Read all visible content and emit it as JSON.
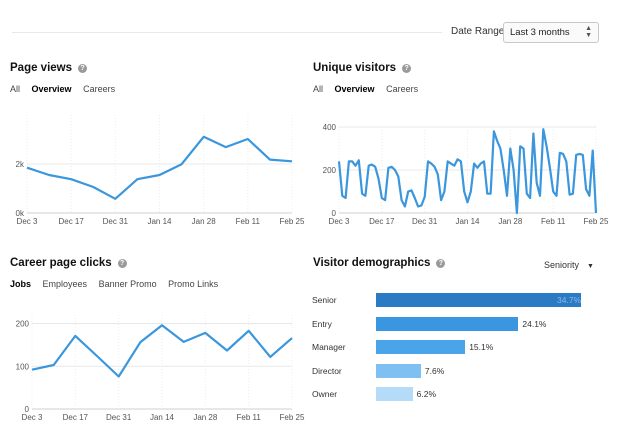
{
  "date_range": {
    "label": "Date Range:",
    "value": "Last 3 months"
  },
  "page_views": {
    "title": "Page views",
    "tabs": [
      "All",
      "Overview",
      "Careers"
    ],
    "active_tab": "Overview",
    "chart_data": {
      "type": "line",
      "x": [
        "Dec 3",
        "Dec 10",
        "Dec 17",
        "Dec 24",
        "Dec 31",
        "Jan 7",
        "Jan 14",
        "Jan 21",
        "Jan 28",
        "Feb 4",
        "Feb 11",
        "Feb 18",
        "Feb 25"
      ],
      "values": [
        1850,
        1550,
        1380,
        1060,
        580,
        1380,
        1550,
        1990,
        3110,
        2690,
        3020,
        2180,
        2110
      ],
      "x_ticks": [
        "Dec 3",
        "Dec 17",
        "Dec 31",
        "Jan 14",
        "Jan 28",
        "Feb 11",
        "Feb 25"
      ],
      "y_ticks": [
        "0k",
        "2k"
      ],
      "ylim": [
        0,
        4000
      ],
      "color": "#3a96dd",
      "grid": true
    }
  },
  "unique_visitors": {
    "title": "Unique visitors",
    "tabs": [
      "All",
      "Overview",
      "Careers"
    ],
    "active_tab": "Overview",
    "chart_data": {
      "type": "line",
      "values": [
        240,
        80,
        70,
        240,
        240,
        220,
        245,
        90,
        80,
        220,
        225,
        215,
        160,
        70,
        60,
        210,
        215,
        200,
        170,
        60,
        30,
        100,
        105,
        70,
        30,
        35,
        75,
        240,
        230,
        215,
        180,
        60,
        100,
        240,
        230,
        220,
        250,
        240,
        100,
        50,
        100,
        230,
        210,
        230,
        240,
        90,
        90,
        380,
        335,
        300,
        200,
        80,
        300,
        200,
        0,
        310,
        300,
        90,
        70,
        370,
        140,
        80,
        390,
        310,
        210,
        100,
        80,
        280,
        275,
        240,
        85,
        90,
        270,
        275,
        270,
        110,
        80,
        290,
        0
      ],
      "x_ticks": [
        "Dec 3",
        "Dec 17",
        "Dec 31",
        "Jan 14",
        "Jan 28",
        "Feb 11",
        "Feb 25"
      ],
      "y_ticks": [
        "0",
        "200",
        "400"
      ],
      "ylim": [
        0,
        400
      ],
      "color": "#3a96dd",
      "grid": true
    }
  },
  "career_clicks": {
    "title": "Career page clicks",
    "tabs": [
      "Jobs",
      "Employees",
      "Banner Promo",
      "Promo Links"
    ],
    "active_tab": "Jobs",
    "chart_data": {
      "type": "line",
      "x": [
        "Dec 3",
        "Dec 10",
        "Dec 17",
        "Dec 24",
        "Dec 31",
        "Jan 7",
        "Jan 14",
        "Jan 21",
        "Jan 28",
        "Feb 4",
        "Feb 11",
        "Feb 18",
        "Feb 25"
      ],
      "values": [
        92,
        103,
        171,
        124,
        76,
        156,
        196,
        157,
        178,
        137,
        183,
        122,
        166
      ],
      "x_ticks": [
        "Dec 3",
        "Dec 17",
        "Dec 31",
        "Jan 14",
        "Jan 28",
        "Feb 11",
        "Feb 25"
      ],
      "y_ticks": [
        "0",
        "100",
        "200"
      ],
      "ylim": [
        0,
        220
      ],
      "color": "#3a96dd",
      "grid": true
    }
  },
  "demographics": {
    "title": "Visitor demographics",
    "selector": "Seniority",
    "chart_data": {
      "type": "bar",
      "orientation": "horizontal",
      "categories": [
        "Senior",
        "Entry",
        "Manager",
        "Director",
        "Owner"
      ],
      "values": [
        34.7,
        24.1,
        15.1,
        7.6,
        6.2
      ],
      "labels": [
        "34.7%",
        "24.1%",
        "15.1%",
        "7.6%",
        "6.2%"
      ],
      "colors": [
        "#2b7bc4",
        "#3a96e0",
        "#4aa4ea",
        "#7ec0f2",
        "#b4dcf8"
      ]
    }
  }
}
